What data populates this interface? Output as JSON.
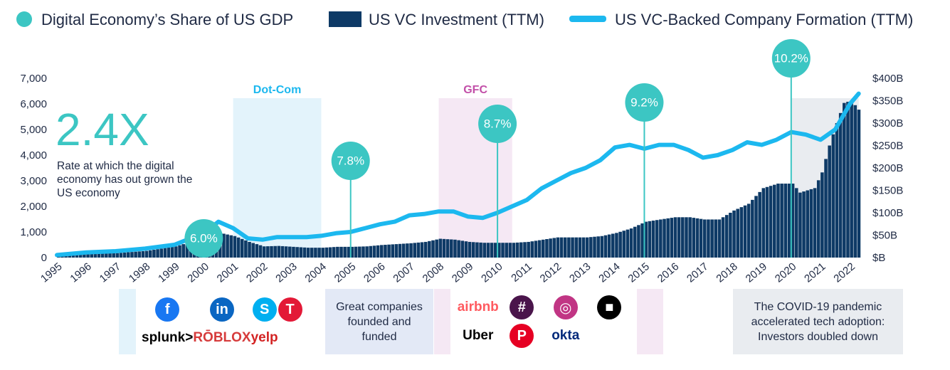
{
  "legend": {
    "gdp_share": "Digital Economy’s Share of US GDP",
    "vc_investment": "US VC Investment (TTM)",
    "company_formation": "US VC-Backed Company Formation (TTM)"
  },
  "colors": {
    "teal": "#3cc6c3",
    "navy": "#0e3a66",
    "line": "#1cb8ef",
    "dotcom_band": "#e3f3fb",
    "gfc_band": "#f5e8f4",
    "covid_band": "#e9ecf0"
  },
  "callout": {
    "value": "2.4X",
    "text": "Rate at which the digital economy has out grown the US economy"
  },
  "bands": [
    {
      "label": "Dot-Com",
      "color": "#1cb8ef"
    },
    {
      "label": "GFC",
      "color": "#c24fa8"
    }
  ],
  "panels": {
    "middle_text": "Great companies founded and funded",
    "covid_text": "The COVID-19 pandemic accelerated tech adoption: Investors doubled down",
    "logos_group1": [
      {
        "name": "facebook",
        "glyph": "f",
        "color": "#1877f2"
      },
      {
        "name": "linkedin",
        "glyph": "in",
        "color": "#0a66c2"
      },
      {
        "name": "skype",
        "glyph": "S",
        "color": "#00aff0"
      },
      {
        "name": "tesla",
        "glyph": "T",
        "color": "#e31937"
      },
      {
        "name": "splunk",
        "glyph": "splunk>",
        "color": "#000000"
      },
      {
        "name": "roblox",
        "glyph": "RŌBLOX",
        "color": "#d63b3b"
      },
      {
        "name": "yelp",
        "glyph": "yelp",
        "color": "#d32323"
      }
    ],
    "logos_group2": [
      {
        "name": "airbnb",
        "glyph": "airbnb",
        "color": "#ff5a5f"
      },
      {
        "name": "slack",
        "glyph": "#",
        "color": "#4a154b"
      },
      {
        "name": "instagram",
        "glyph": "◎",
        "color": "#c13584"
      },
      {
        "name": "square",
        "glyph": "■",
        "color": "#000000"
      },
      {
        "name": "uber",
        "glyph": "Uber",
        "color": "#000000"
      },
      {
        "name": "pinterest",
        "glyph": "P",
        "color": "#e60023"
      },
      {
        "name": "okta",
        "glyph": "okta",
        "color": "#00297a"
      }
    ]
  },
  "chart_data": {
    "type": "bar",
    "title": "",
    "x_ticks": [
      "1995",
      "1996",
      "1997",
      "1998",
      "1999",
      "2000",
      "2001",
      "2002",
      "2003",
      "2004",
      "2005",
      "2006",
      "2007",
      "2008",
      "2009",
      "2010",
      "2011",
      "2012",
      "2013",
      "2014",
      "2015",
      "2016",
      "2017",
      "2018",
      "2019",
      "2020",
      "2021",
      "2022"
    ],
    "left_axis": {
      "ylim": [
        0,
        7000
      ],
      "ticks": [
        "0",
        "1,000",
        "2,000",
        "3,000",
        "4,000",
        "5,000",
        "6,000",
        "7,000"
      ]
    },
    "right_axis": {
      "ylim": [
        0,
        400
      ],
      "ticks": [
        "$B",
        "$50B",
        "$100B",
        "$150B",
        "$200B",
        "$250B",
        "$300B",
        "$350B",
        "$400B"
      ]
    },
    "series": [
      {
        "name": "US VC Investment (TTM)",
        "type": "bar",
        "axis": "right",
        "x": [
          1995,
          1996,
          1997,
          1998,
          1999,
          2000,
          2000.5,
          2001,
          2001.5,
          2002,
          2002.5,
          2003,
          2003.5,
          2004,
          2004.5,
          2005,
          2005.5,
          2006,
          2006.5,
          2007,
          2007.5,
          2008,
          2008.5,
          2009,
          2009.5,
          2010,
          2010.5,
          2011,
          2011.5,
          2012,
          2012.5,
          2013,
          2013.5,
          2014,
          2014.5,
          2015,
          2015.5,
          2016,
          2016.5,
          2017,
          2017.5,
          2018,
          2018.5,
          2019,
          2019.5,
          2020,
          2020.25,
          2020.5,
          2020.75,
          2021,
          2021.25,
          2021.5,
          2021.75,
          2022,
          2022.25
        ],
        "values": [
          5,
          8,
          10,
          15,
          25,
          45,
          55,
          48,
          35,
          25,
          26,
          24,
          22,
          22,
          24,
          24,
          25,
          28,
          30,
          32,
          35,
          42,
          40,
          35,
          33,
          33,
          33,
          35,
          40,
          45,
          45,
          45,
          48,
          55,
          65,
          80,
          85,
          90,
          90,
          85,
          85,
          105,
          120,
          155,
          165,
          165,
          145,
          150,
          155,
          190,
          250,
          300,
          345,
          350,
          330
        ]
      },
      {
        "name": "US VC-Backed Company Formation (TTM)",
        "type": "line",
        "axis": "left",
        "x": [
          1995,
          1996,
          1997,
          1998,
          1999,
          2000,
          2000.5,
          2001,
          2001.5,
          2002,
          2002.5,
          2003,
          2003.5,
          2004,
          2004.5,
          2005,
          2005.5,
          2006,
          2006.5,
          2007,
          2007.5,
          2008,
          2008.5,
          2009,
          2009.5,
          2010,
          2010.5,
          2011,
          2011.5,
          2012,
          2012.5,
          2013,
          2013.5,
          2014,
          2014.5,
          2015,
          2015.5,
          2016,
          2016.5,
          2017,
          2017.5,
          2018,
          2018.5,
          2019,
          2019.5,
          2020,
          2020.5,
          2021,
          2021.5,
          2022,
          2022.3
        ],
        "values": [
          100,
          200,
          250,
          350,
          500,
          950,
          1400,
          1150,
          750,
          700,
          800,
          800,
          800,
          850,
          950,
          1000,
          1150,
          1300,
          1400,
          1650,
          1700,
          1800,
          1800,
          1600,
          1550,
          1750,
          2000,
          2250,
          2700,
          3000,
          3300,
          3500,
          3800,
          4300,
          4400,
          4250,
          4400,
          4400,
          4200,
          3900,
          4000,
          4200,
          4500,
          4400,
          4600,
          4900,
          4800,
          4600,
          5000,
          6000,
          6400
        ]
      }
    ],
    "annotations": [
      {
        "x": 2000,
        "label": "6.0%"
      },
      {
        "x": 2005,
        "label": "7.8%"
      },
      {
        "x": 2010,
        "label": "8.7%"
      },
      {
        "x": 2015,
        "label": "9.2%"
      },
      {
        "x": 2020,
        "label": "10.2%"
      }
    ],
    "highlight_ranges": [
      {
        "label": "Dot-Com",
        "from": 2001,
        "to": 2004
      },
      {
        "label": "GFC",
        "from": 2008,
        "to": 2010.5
      },
      {
        "label": "",
        "from": 2020,
        "to": 2022.3
      }
    ],
    "grid": false,
    "legend_position": "top"
  }
}
